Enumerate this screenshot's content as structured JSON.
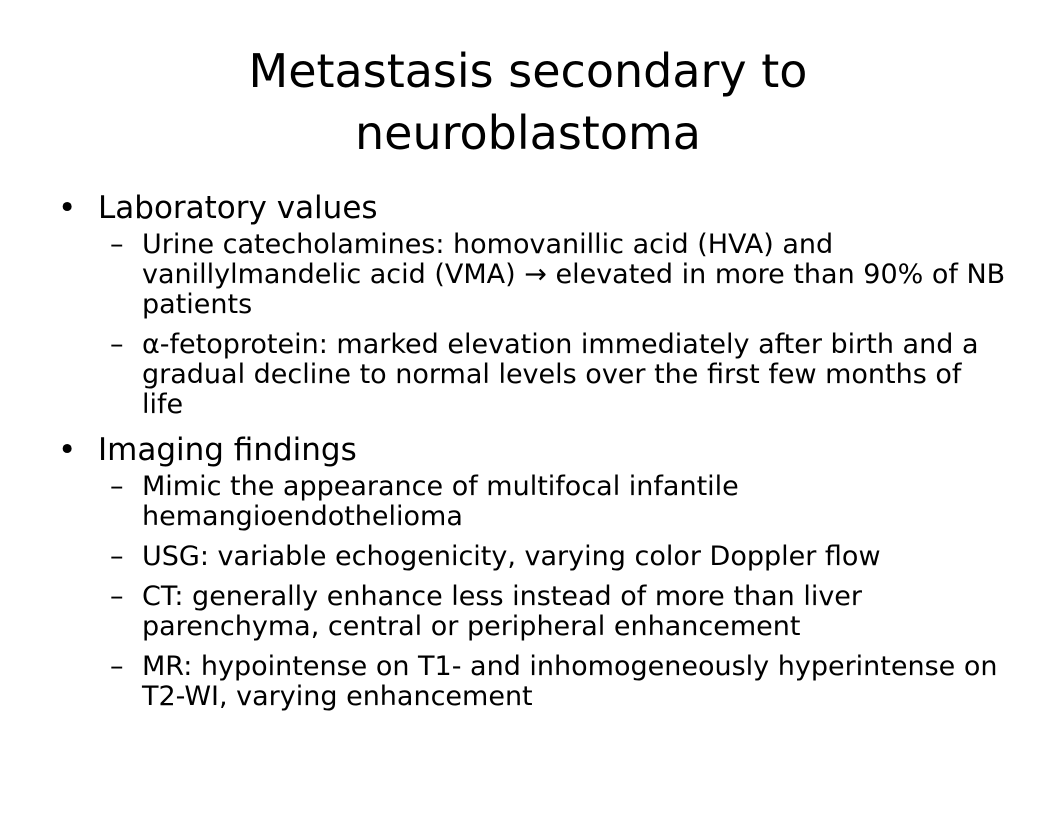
{
  "slide": {
    "title_line1": "Metastasis secondary to",
    "title_line2": "neuroblastoma",
    "bullet_symbol": "•",
    "dash_symbol": "–",
    "sections": [
      {
        "heading": "Laboratory values",
        "items": [
          "Urine catecholamines: homovanillic acid (HVA) and vanillylmandelic acid (VMA) → elevated in more than 90% of NB patients",
          "α-fetoprotein: marked elevation immediately after birth and a gradual decline to normal levels over the first few months of life"
        ]
      },
      {
        "heading": "Imaging findings",
        "items": [
          "Mimic the appearance of multifocal infantile hemangioendothelioma",
          "USG: variable echogenicity, varying color Doppler flow",
          "CT: generally enhance less instead of more than liver parenchyma, central or peripheral enhancement",
          "MR: hypointense on T1- and inhomogeneously hyperintense on T2-WI, varying enhancement"
        ]
      }
    ]
  }
}
